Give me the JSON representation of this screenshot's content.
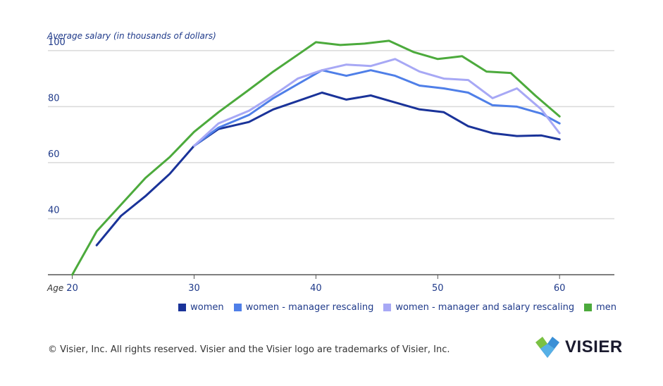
{
  "chart_data": {
    "type": "line",
    "ylabel": "Average salary (in thousands of dollars)",
    "xlabel": "Age",
    "xlim": [
      18,
      64.5
    ],
    "ylim": [
      20,
      108
    ],
    "yticks": [
      "40",
      "60",
      "80",
      "100"
    ],
    "xticks": [
      "20",
      "30",
      "40",
      "50",
      "60"
    ],
    "grid": true,
    "legend_position": "bottom-right",
    "series": [
      {
        "name": "women",
        "color": "#1a3399",
        "x": [
          22,
          24,
          26,
          28,
          30,
          32,
          34.5,
          36.5,
          38.5,
          40.5,
          42.5,
          44.5,
          46.5,
          48.5,
          50.5,
          52.5,
          54.5,
          56.5,
          58.5,
          60
        ],
        "y": [
          30.5,
          41,
          48,
          56,
          66,
          72,
          74.5,
          79,
          82,
          85,
          82.5,
          84,
          81.5,
          79,
          78,
          73,
          70.5,
          69.5,
          69.7,
          68.3
        ]
      },
      {
        "name": "women - manager rescaling",
        "color": "#4f7fe8",
        "x": [
          30,
          32,
          34.5,
          36.5,
          38.5,
          40.5,
          42.5,
          44.5,
          46.5,
          48.5,
          50.5,
          52.5,
          54.5,
          56.5,
          58.5,
          60
        ],
        "y": [
          66,
          72.5,
          77,
          83,
          88,
          93,
          91,
          93,
          91,
          87.5,
          86.5,
          85,
          80.5,
          80,
          77.5,
          74
        ]
      },
      {
        "name": "women - manager and salary rescaling",
        "color": "#a7a8f5",
        "x": [
          30,
          32,
          34.5,
          36.5,
          38.5,
          40.5,
          42.5,
          44.5,
          46.5,
          48.5,
          50.5,
          52.5,
          54.5,
          56.5,
          58.5,
          60
        ],
        "y": [
          66,
          74,
          78.5,
          84,
          90,
          93,
          95,
          94.5,
          97,
          92.5,
          90,
          89.5,
          83,
          86.5,
          79,
          70.5
        ]
      },
      {
        "name": "men",
        "color": "#4caa3c",
        "x": [
          20,
          22,
          24,
          26,
          28,
          30,
          32,
          34.5,
          36.5,
          38.5,
          40,
          42,
          44,
          46,
          48,
          50,
          52,
          54,
          56,
          58,
          60
        ],
        "y": [
          20,
          35.5,
          45,
          54.5,
          62,
          71,
          78,
          86,
          92.5,
          98.5,
          103,
          102,
          102.5,
          103.5,
          99.5,
          97,
          98,
          92.5,
          92,
          84,
          76.5
        ]
      }
    ]
  },
  "footer": {
    "copyright": "© Visier, Inc. All rights reserved. Visier and the Visier logo are trademarks of Visier, Inc."
  },
  "logo": {
    "text": "VISIER"
  }
}
